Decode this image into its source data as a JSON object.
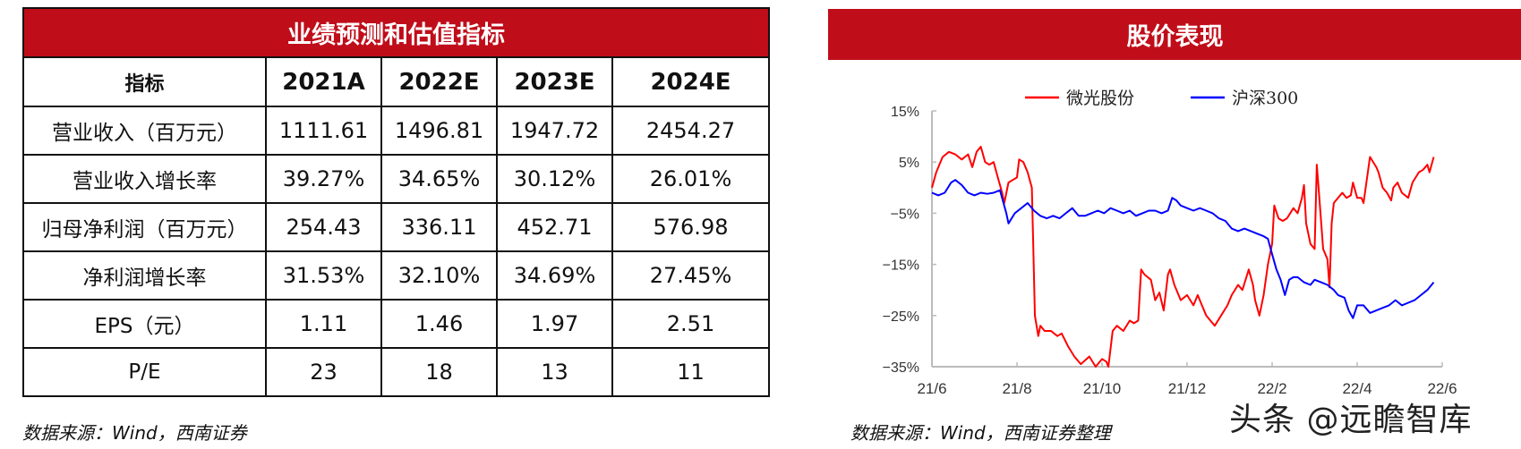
{
  "left_panel": {
    "title": "业绩预测和估值指标",
    "headers": [
      "指标",
      "2021A",
      "2022E",
      "2023E",
      "2024E"
    ],
    "rows": [
      {
        "label": "营业收入（百万元）",
        "values": [
          "1111.61",
          "1496.81",
          "1947.72",
          "2454.27"
        ]
      },
      {
        "label": "营业收入增长率",
        "values": [
          "39.27%",
          "34.65%",
          "30.12%",
          "26.01%"
        ]
      },
      {
        "label": "归母净利润（百万元）",
        "values": [
          "254.43",
          "336.11",
          "452.71",
          "576.98"
        ]
      },
      {
        "label": "净利润增长率",
        "values": [
          "31.53%",
          "32.10%",
          "34.69%",
          "27.45%"
        ]
      },
      {
        "label": "EPS（元）",
        "values": [
          "1.11",
          "1.46",
          "1.97",
          "2.51"
        ]
      },
      {
        "label": "P/E",
        "values": [
          "23",
          "18",
          "13",
          "11"
        ]
      }
    ],
    "source": "数据来源：Wind，西南证券"
  },
  "right_panel": {
    "title": "股价表现",
    "source": "数据来源：Wind，西南证券整理"
  },
  "watermark": "头条 @远瞻智库",
  "colors": {
    "accent_red": "#C00D1A",
    "series_red": "#FF0000",
    "series_blue": "#0000FF",
    "axis": "#BBBBBB"
  },
  "chart_data": {
    "type": "line",
    "title": "股价表现",
    "xlabel": "",
    "ylabel": "",
    "x_ticks": [
      "21/6",
      "21/8",
      "21/10",
      "21/12",
      "22/2",
      "22/4",
      "22/6"
    ],
    "y_ticks": [
      "15%",
      "5%",
      "-5%",
      "-15%",
      "-25%",
      "-35%"
    ],
    "ylim": [
      -35,
      15
    ],
    "grid": false,
    "legend_position": "top",
    "series": [
      {
        "name": "微光股份",
        "color": "#FF0000",
        "points": [
          [
            0,
            0
          ],
          [
            0.1,
            3
          ],
          [
            0.25,
            6
          ],
          [
            0.4,
            7
          ],
          [
            0.55,
            6.5
          ],
          [
            0.7,
            5.5
          ],
          [
            0.85,
            6.5
          ],
          [
            0.95,
            4
          ],
          [
            1.05,
            7
          ],
          [
            1.15,
            8
          ],
          [
            1.25,
            5
          ],
          [
            1.35,
            4.5
          ],
          [
            1.45,
            5
          ],
          [
            1.55,
            2
          ],
          [
            1.65,
            -1
          ],
          [
            1.7,
            -3
          ],
          [
            1.8,
            1
          ],
          [
            1.9,
            1.5
          ],
          [
            2.0,
            2
          ],
          [
            2.05,
            5.5
          ],
          [
            2.15,
            5
          ],
          [
            2.25,
            3
          ],
          [
            2.35,
            0
          ],
          [
            2.38,
            -10
          ],
          [
            2.42,
            -25
          ],
          [
            2.5,
            -29
          ],
          [
            2.55,
            -27
          ],
          [
            2.65,
            -28
          ],
          [
            2.8,
            -28
          ],
          [
            2.95,
            -29
          ],
          [
            3.05,
            -28.5
          ],
          [
            3.2,
            -31
          ],
          [
            3.35,
            -33
          ],
          [
            3.5,
            -34.5
          ],
          [
            3.7,
            -33
          ],
          [
            3.85,
            -35
          ],
          [
            4.0,
            -33.5
          ],
          [
            4.1,
            -34
          ],
          [
            4.15,
            -35
          ],
          [
            4.25,
            -28
          ],
          [
            4.35,
            -27
          ],
          [
            4.5,
            -28
          ],
          [
            4.65,
            -26
          ],
          [
            4.75,
            -26.5
          ],
          [
            4.85,
            -26
          ],
          [
            4.92,
            -16
          ],
          [
            5.0,
            -17
          ],
          [
            5.15,
            -18
          ],
          [
            5.25,
            -22
          ],
          [
            5.35,
            -20.5
          ],
          [
            5.45,
            -24
          ],
          [
            5.55,
            -17
          ],
          [
            5.6,
            -16
          ],
          [
            5.7,
            -19
          ],
          [
            5.85,
            -22
          ],
          [
            6.0,
            -21
          ],
          [
            6.15,
            -23
          ],
          [
            6.25,
            -21
          ],
          [
            6.35,
            -23
          ],
          [
            6.45,
            -25
          ],
          [
            6.55,
            -26
          ],
          [
            6.65,
            -27
          ],
          [
            6.8,
            -25
          ],
          [
            6.95,
            -23
          ],
          [
            7.05,
            -21
          ],
          [
            7.2,
            -19
          ],
          [
            7.3,
            -20
          ],
          [
            7.45,
            -16
          ],
          [
            7.55,
            -19
          ],
          [
            7.6,
            -22
          ],
          [
            7.7,
            -25
          ],
          [
            7.8,
            -21
          ],
          [
            7.9,
            -15
          ],
          [
            8.0,
            -11
          ],
          [
            8.05,
            -3.5
          ],
          [
            8.15,
            -6
          ],
          [
            8.25,
            -6.5
          ],
          [
            8.35,
            -6
          ],
          [
            8.5,
            -4
          ],
          [
            8.6,
            -5
          ],
          [
            8.7,
            -2
          ],
          [
            8.75,
            0.5
          ],
          [
            8.8,
            -7
          ],
          [
            8.9,
            -11
          ],
          [
            9.0,
            -12
          ],
          [
            9.05,
            4.5
          ],
          [
            9.1,
            -1
          ],
          [
            9.2,
            -12
          ],
          [
            9.3,
            -14
          ],
          [
            9.35,
            -19.5
          ],
          [
            9.4,
            -7
          ],
          [
            9.45,
            -3
          ],
          [
            9.55,
            -2
          ],
          [
            9.65,
            -1
          ],
          [
            9.75,
            -2
          ],
          [
            9.85,
            -1.5
          ],
          [
            9.9,
            1
          ],
          [
            10.0,
            -2
          ],
          [
            10.1,
            -2
          ],
          [
            10.15,
            -3
          ],
          [
            10.3,
            6
          ],
          [
            10.45,
            4
          ],
          [
            10.5,
            3
          ],
          [
            10.6,
            0
          ],
          [
            10.7,
            -1
          ],
          [
            10.8,
            -2.5
          ],
          [
            10.85,
            0
          ],
          [
            10.95,
            1
          ],
          [
            11.05,
            -1
          ],
          [
            11.2,
            -2
          ],
          [
            11.3,
            1
          ],
          [
            11.45,
            3
          ],
          [
            11.55,
            3.5
          ],
          [
            11.65,
            4.5
          ],
          [
            11.7,
            3
          ],
          [
            11.8,
            6
          ]
        ]
      },
      {
        "name": "沪深300",
        "color": "#0000FF",
        "points": [
          [
            0,
            -1
          ],
          [
            0.15,
            -1.5
          ],
          [
            0.3,
            -1
          ],
          [
            0.45,
            1
          ],
          [
            0.55,
            1.5
          ],
          [
            0.7,
            0.5
          ],
          [
            0.85,
            -1
          ],
          [
            1.0,
            -1.5
          ],
          [
            1.15,
            -1
          ],
          [
            1.3,
            -1.2
          ],
          [
            1.45,
            -1
          ],
          [
            1.6,
            -0.5
          ],
          [
            1.75,
            -5
          ],
          [
            1.8,
            -7
          ],
          [
            1.95,
            -5
          ],
          [
            2.1,
            -4
          ],
          [
            2.25,
            -3
          ],
          [
            2.4,
            -4.5
          ],
          [
            2.55,
            -5.5
          ],
          [
            2.7,
            -6
          ],
          [
            2.85,
            -5.5
          ],
          [
            3.0,
            -6
          ],
          [
            3.15,
            -5
          ],
          [
            3.3,
            -4
          ],
          [
            3.45,
            -5.5
          ],
          [
            3.6,
            -5.5
          ],
          [
            3.75,
            -5
          ],
          [
            3.9,
            -4.5
          ],
          [
            4.05,
            -5
          ],
          [
            4.2,
            -4
          ],
          [
            4.35,
            -4.5
          ],
          [
            4.5,
            -5
          ],
          [
            4.65,
            -4.5
          ],
          [
            4.8,
            -5.5
          ],
          [
            4.95,
            -5
          ],
          [
            5.1,
            -4.5
          ],
          [
            5.25,
            -4.5
          ],
          [
            5.4,
            -5
          ],
          [
            5.55,
            -4.5
          ],
          [
            5.65,
            -2
          ],
          [
            5.75,
            -2.5
          ],
          [
            5.85,
            -3.5
          ],
          [
            6.0,
            -4
          ],
          [
            6.15,
            -4.5
          ],
          [
            6.3,
            -4
          ],
          [
            6.45,
            -4.5
          ],
          [
            6.6,
            -5
          ],
          [
            6.75,
            -6
          ],
          [
            6.9,
            -6.5
          ],
          [
            7.05,
            -8
          ],
          [
            7.2,
            -8.5
          ],
          [
            7.35,
            -8
          ],
          [
            7.5,
            -8.5
          ],
          [
            7.65,
            -9
          ],
          [
            7.8,
            -9.5
          ],
          [
            7.9,
            -10
          ],
          [
            8.0,
            -13
          ],
          [
            8.1,
            -16
          ],
          [
            8.2,
            -18
          ],
          [
            8.3,
            -21
          ],
          [
            8.4,
            -18
          ],
          [
            8.5,
            -17.5
          ],
          [
            8.6,
            -17.5
          ],
          [
            8.75,
            -18.5
          ],
          [
            8.9,
            -19
          ],
          [
            9.0,
            -18
          ],
          [
            9.15,
            -18.5
          ],
          [
            9.3,
            -19
          ],
          [
            9.45,
            -20
          ],
          [
            9.55,
            -21
          ],
          [
            9.7,
            -21.5
          ],
          [
            9.8,
            -24
          ],
          [
            9.9,
            -25.5
          ],
          [
            10.0,
            -23
          ],
          [
            10.15,
            -23
          ],
          [
            10.3,
            -24.5
          ],
          [
            10.45,
            -24
          ],
          [
            10.6,
            -23.5
          ],
          [
            10.75,
            -23
          ],
          [
            10.9,
            -22
          ],
          [
            11.05,
            -23
          ],
          [
            11.2,
            -22.5
          ],
          [
            11.35,
            -22
          ],
          [
            11.5,
            -21
          ],
          [
            11.65,
            -20
          ],
          [
            11.8,
            -18.5
          ]
        ]
      }
    ]
  }
}
